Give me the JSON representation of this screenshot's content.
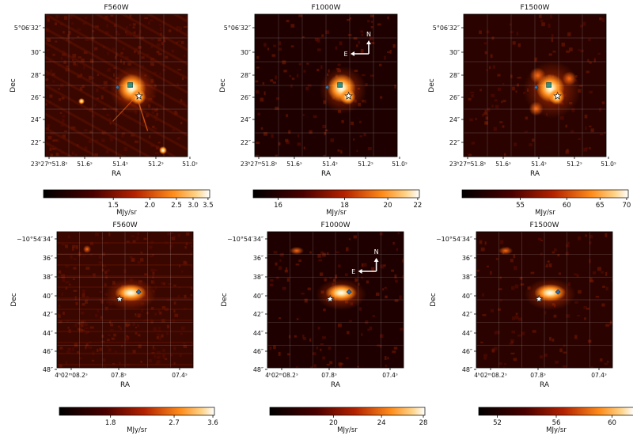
{
  "units": "MJy/sr",
  "row1": {
    "panels": [
      {
        "title": "F560W",
        "cbar_ticks": [
          "1.5",
          "2.0",
          "2.5",
          "3.0",
          "3.5"
        ]
      },
      {
        "title": "F1000W",
        "cbar_ticks": [
          "16",
          "18",
          "20",
          "22"
        ]
      },
      {
        "title": "F1500W",
        "cbar_ticks": [
          "55",
          "60",
          "65",
          "70"
        ]
      }
    ],
    "dec_ticks": [
      "5°06′32″",
      "30″",
      "28″",
      "26″",
      "24″",
      "22″"
    ],
    "ra_ticks": [
      "23ʰ27ᵐ51.8ˢ",
      "51.6ˢ",
      "51.4ˢ",
      "51.2ˢ",
      "51.0ˢ"
    ],
    "ylabel": "Dec",
    "xlabel": "RA"
  },
  "row2": {
    "panels": [
      {
        "title": "F560W",
        "cbar_ticks": [
          "1.8",
          "2.7",
          "3.6"
        ]
      },
      {
        "title": "F1000W",
        "cbar_ticks": [
          "20",
          "24",
          "28"
        ]
      },
      {
        "title": "F1500W",
        "cbar_ticks": [
          "52",
          "56",
          "60"
        ]
      }
    ],
    "dec_ticks": [
      "−10°54′34″",
      "36″",
      "38″",
      "40″",
      "42″",
      "44″",
      "46″",
      "48″"
    ],
    "ra_ticks": [
      "4ʰ02ᵐ08.2ˢ",
      "07.8ˢ",
      "07.4ˢ"
    ],
    "ylabel": "Dec",
    "xlabel": "RA"
  },
  "compass": {
    "north": "N",
    "east": "E"
  },
  "colors": {
    "background": "#2a0000",
    "glow": "#ff9a2a",
    "core": "#ffffff"
  }
}
